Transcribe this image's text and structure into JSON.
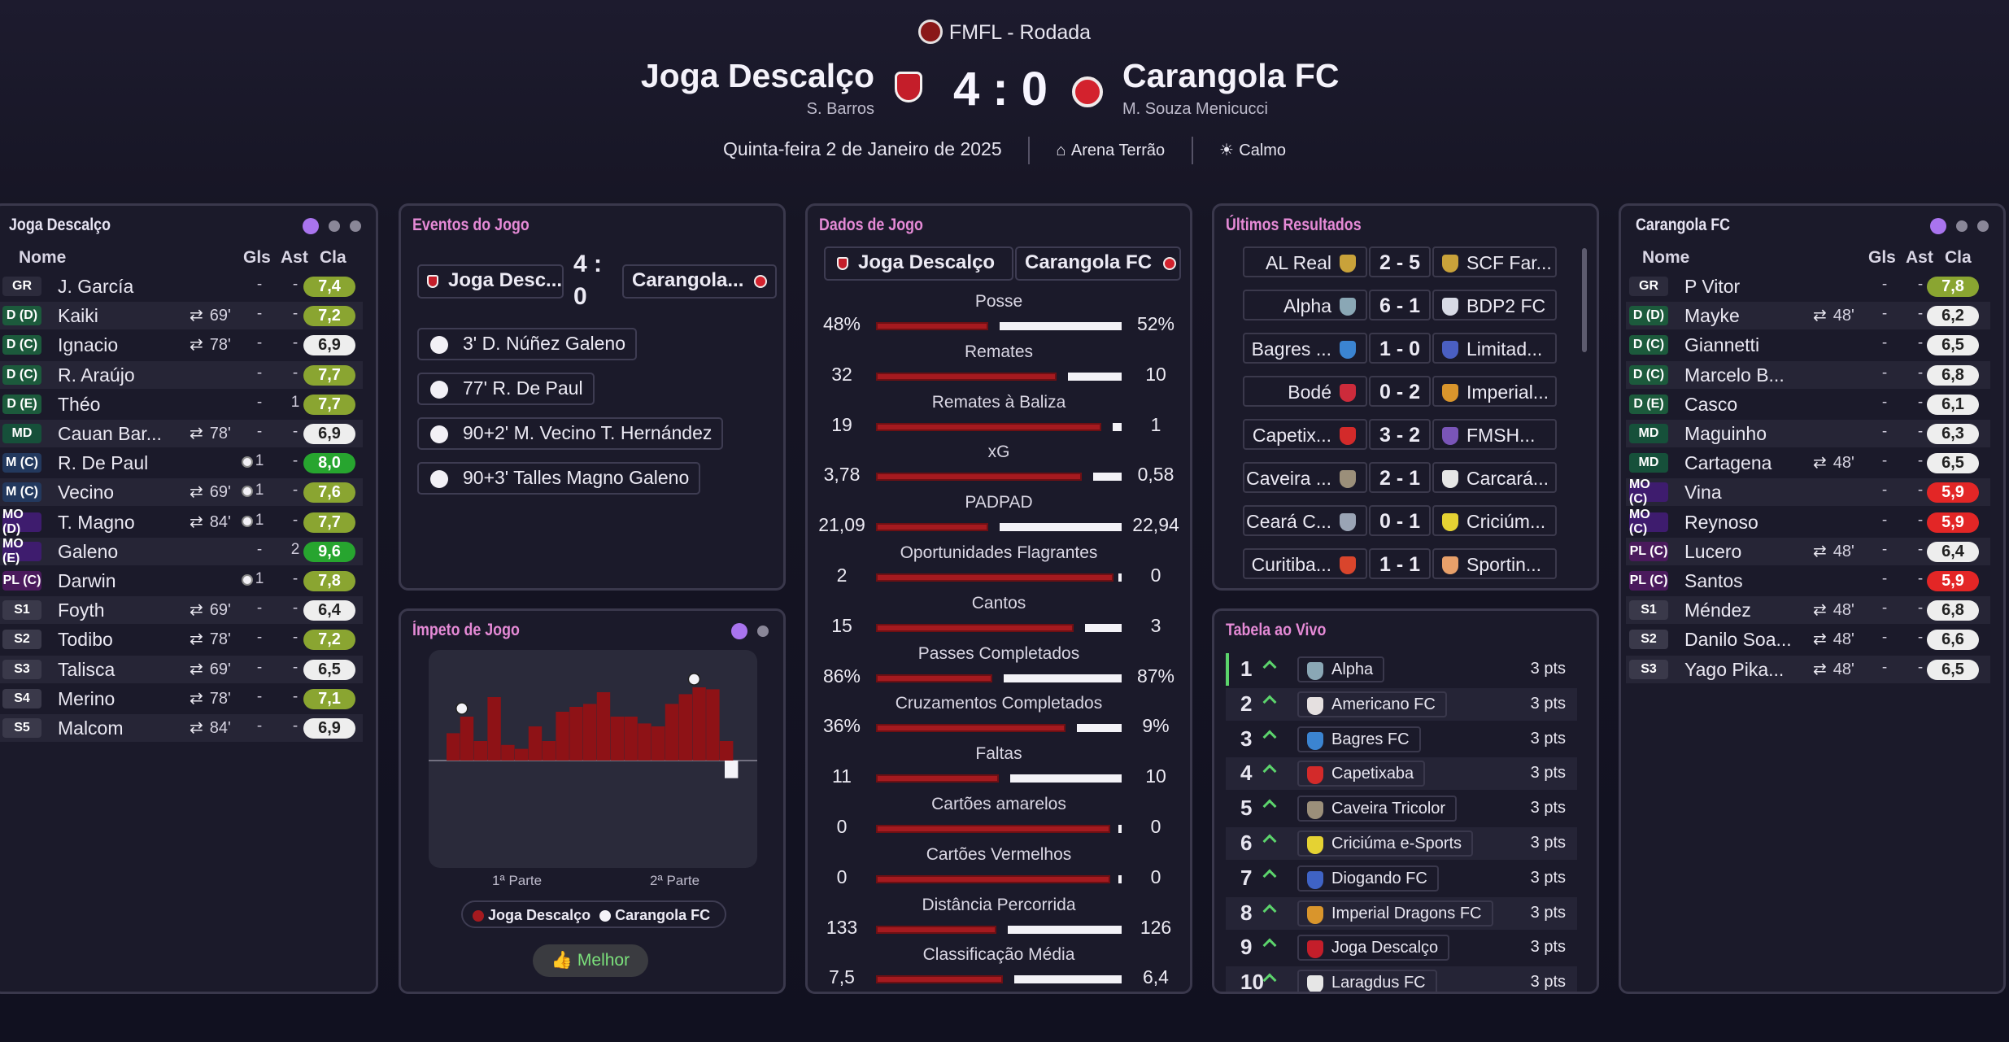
{
  "header": {
    "competition": "FMFL - Rodada",
    "home_team": "Joga Descalço",
    "home_coach": "S. Barros",
    "away_team": "Carangola FC",
    "away_coach": "M. Souza Menicucci",
    "score": "4 : 0",
    "date": "Quinta-feira 2 de Janeiro de 2025",
    "venue": "Arena Terrão",
    "weather": "Calmo"
  },
  "home_panel": {
    "title": "Joga Descalço",
    "col_name": "Nome",
    "col_goals": "Gls",
    "col_assists": "Ast",
    "col_rating": "Cla",
    "players": [
      {
        "pos": "GR",
        "name": "J. García",
        "sub": "",
        "g": "-",
        "a": "-",
        "r": "7,4"
      },
      {
        "pos": "D (D)",
        "name": "Kaiki",
        "sub": "69'",
        "g": "-",
        "a": "-",
        "r": "7,2"
      },
      {
        "pos": "D (C)",
        "name": "Ignacio",
        "sub": "78'",
        "g": "-",
        "a": "-",
        "r": "6,9"
      },
      {
        "pos": "D (C)",
        "name": "R. Araújo",
        "sub": "",
        "g": "-",
        "a": "-",
        "r": "7,7"
      },
      {
        "pos": "D (E)",
        "name": "Théo",
        "sub": "",
        "g": "-",
        "a": "1",
        "r": "7,7"
      },
      {
        "pos": "MD",
        "name": "Cauan Bar...",
        "sub": "78'",
        "g": "-",
        "a": "-",
        "r": "6,9"
      },
      {
        "pos": "M (C)",
        "name": "R. De Paul",
        "sub": "",
        "g": "1",
        "a": "-",
        "r": "8,0"
      },
      {
        "pos": "M (C)",
        "name": "Vecino",
        "sub": "69'",
        "g": "1",
        "a": "-",
        "r": "7,6"
      },
      {
        "pos": "MO (D)",
        "name": "T. Magno",
        "sub": "84'",
        "g": "1",
        "a": "-",
        "r": "7,7"
      },
      {
        "pos": "MO (E)",
        "name": "Galeno",
        "sub": "",
        "g": "-",
        "a": "2",
        "r": "9,6"
      },
      {
        "pos": "PL (C)",
        "name": "Darwin",
        "sub": "",
        "g": "1",
        "a": "-",
        "r": "7,8"
      },
      {
        "pos": "S1",
        "name": "Foyth",
        "sub": "69'",
        "g": "-",
        "a": "-",
        "r": "6,4"
      },
      {
        "pos": "S2",
        "name": "Todibo",
        "sub": "78'",
        "g": "-",
        "a": "-",
        "r": "7,2"
      },
      {
        "pos": "S3",
        "name": "Talisca",
        "sub": "69'",
        "g": "-",
        "a": "-",
        "r": "6,5"
      },
      {
        "pos": "S4",
        "name": "Merino",
        "sub": "78'",
        "g": "-",
        "a": "-",
        "r": "7,1"
      },
      {
        "pos": "S5",
        "name": "Malcom",
        "sub": "84'",
        "g": "-",
        "a": "-",
        "r": "6,9"
      }
    ]
  },
  "away_panel": {
    "title": "Carangola FC",
    "col_name": "Nome",
    "col_goals": "Gls",
    "col_assists": "Ast",
    "col_rating": "Cla",
    "players": [
      {
        "pos": "GR",
        "name": "P Vitor",
        "sub": "",
        "g": "-",
        "a": "-",
        "r": "7,8"
      },
      {
        "pos": "D (D)",
        "name": "Mayke",
        "sub": "48'",
        "g": "-",
        "a": "-",
        "r": "6,2"
      },
      {
        "pos": "D (C)",
        "name": "Giannetti",
        "sub": "",
        "g": "-",
        "a": "-",
        "r": "6,5"
      },
      {
        "pos": "D (C)",
        "name": "Marcelo B...",
        "sub": "",
        "g": "-",
        "a": "-",
        "r": "6,8"
      },
      {
        "pos": "D (E)",
        "name": "Casco",
        "sub": "",
        "g": "-",
        "a": "-",
        "r": "6,1"
      },
      {
        "pos": "MD",
        "name": "Maguinho",
        "sub": "",
        "g": "-",
        "a": "-",
        "r": "6,3"
      },
      {
        "pos": "MD",
        "name": "Cartagena",
        "sub": "48'",
        "g": "-",
        "a": "-",
        "r": "6,5"
      },
      {
        "pos": "MO (C)",
        "name": "Vina",
        "sub": "",
        "g": "-",
        "a": "-",
        "r": "5,9"
      },
      {
        "pos": "MO (C)",
        "name": "Reynoso",
        "sub": "",
        "g": "-",
        "a": "-",
        "r": "5,9"
      },
      {
        "pos": "PL (C)",
        "name": "Lucero",
        "sub": "48'",
        "g": "-",
        "a": "-",
        "r": "6,4"
      },
      {
        "pos": "PL (C)",
        "name": "Santos",
        "sub": "",
        "g": "-",
        "a": "-",
        "r": "5,9"
      },
      {
        "pos": "S1",
        "name": "Méndez",
        "sub": "48'",
        "g": "-",
        "a": "-",
        "r": "6,8"
      },
      {
        "pos": "S2",
        "name": "Danilo Soa...",
        "sub": "48'",
        "g": "-",
        "a": "-",
        "r": "6,6"
      },
      {
        "pos": "S3",
        "name": "Yago Pika...",
        "sub": "48'",
        "g": "-",
        "a": "-",
        "r": "6,5"
      }
    ]
  },
  "events": {
    "title": "Eventos do Jogo",
    "home": "Joga Desc...",
    "score": "4 :\n0",
    "away": "Carangola...",
    "items": [
      "3' D. Núñez Galeno",
      "77' R. De Paul",
      "90+2' M. Vecino T. Hernández",
      "90+3' Talles Magno Galeno"
    ]
  },
  "momentum": {
    "title": "Ímpeto de Jogo",
    "first_half": "1ª Parte",
    "second_half": "2ª Parte",
    "legend_home": "Joga Descalço",
    "legend_away": "Carangola FC",
    "button": "Melhor",
    "home_values": [
      0.28,
      0.45,
      0.2,
      0.65,
      0.16,
      0.12,
      0.35,
      0.2,
      0.5,
      0.55,
      0.58,
      0.7,
      0.45,
      0.45,
      0.38,
      0.35,
      0.58,
      0.68,
      0.75,
      0.73,
      0.2
    ],
    "away_values": [
      0,
      0,
      0,
      0,
      0,
      0,
      0,
      0,
      0,
      0,
      0,
      0,
      0,
      0,
      0,
      0,
      0,
      0,
      0,
      0,
      0.18
    ],
    "goal_markers": [
      1,
      18
    ]
  },
  "stats": {
    "title": "Dados de Jogo",
    "home": "Joga Descalço",
    "away": "Carangola FC",
    "items": [
      {
        "label": "Posse",
        "home": "48%",
        "away": "52%",
        "hv": 48,
        "av": 52
      },
      {
        "label": "Remates",
        "home": "32",
        "away": "10",
        "hv": 32,
        "av": 10
      },
      {
        "label": "Remates à Baliza",
        "home": "19",
        "away": "1",
        "hv": 19,
        "av": 1
      },
      {
        "label": "xG",
        "home": "3,78",
        "away": "0,58",
        "hv": 3.78,
        "av": 0.58
      },
      {
        "label": "PADPAD",
        "home": "21,09",
        "away": "22,94",
        "hv": 21.09,
        "av": 22.94
      },
      {
        "label": "Oportunidades Flagrantes",
        "home": "2",
        "away": "0",
        "hv": 2,
        "av": 0
      },
      {
        "label": "Cantos",
        "home": "15",
        "away": "3",
        "hv": 15,
        "av": 3
      },
      {
        "label": "Passes Completados",
        "home": "86%",
        "away": "87%",
        "hv": 86,
        "av": 87
      },
      {
        "label": "Cruzamentos Completados",
        "home": "36%",
        "away": "9%",
        "hv": 36,
        "av": 9
      },
      {
        "label": "Faltas",
        "home": "11",
        "away": "10",
        "hv": 11,
        "av": 10
      },
      {
        "label": "Cartões amarelos",
        "home": "0",
        "away": "0",
        "hv": 0,
        "av": 0
      },
      {
        "label": "Cartões Vermelhos",
        "home": "0",
        "away": "0",
        "hv": 0,
        "av": 0
      },
      {
        "label": "Distância Percorrida",
        "home": "133",
        "away": "126",
        "hv": 133,
        "av": 126
      },
      {
        "label": "Classificação Média",
        "home": "7,5",
        "away": "6,4",
        "hv": 7.5,
        "av": 6.4
      }
    ]
  },
  "results": {
    "title": "Últimos Resultados",
    "items": [
      {
        "home": "AL Real",
        "score": "2 - 5",
        "away": "SCF Far...",
        "hc": "#c9a23a",
        "ac": "#c9a23a"
      },
      {
        "home": "Alpha",
        "score": "6 - 1",
        "away": "BDP2 FC",
        "hc": "#8aa7b5",
        "ac": "#d8dbe6"
      },
      {
        "home": "Bagres ...",
        "score": "1 - 0",
        "away": "Limitad...",
        "hc": "#3b84d1",
        "ac": "#4a5fc2"
      },
      {
        "home": "Bodé",
        "score": "0 - 2",
        "away": "Imperial...",
        "hc": "#cc2b3b",
        "ac": "#d9952c"
      },
      {
        "home": "Capetix...",
        "score": "3 - 2",
        "away": "FMSH...",
        "hc": "#d32a2a",
        "ac": "#7a55b8"
      },
      {
        "home": "Caveira ...",
        "score": "2 - 1",
        "away": "Carcará...",
        "hc": "#9b8f7a",
        "ac": "#e6e6e6"
      },
      {
        "home": "Ceará C...",
        "score": "0 - 1",
        "away": "Criciúm...",
        "hc": "#9aa4b5",
        "ac": "#e5d233"
      },
      {
        "home": "Curitiba...",
        "score": "1 - 1",
        "away": "Sportin...",
        "hc": "#d9452c",
        "ac": "#e8a06a"
      }
    ]
  },
  "table": {
    "title": "Tabela ao Vivo",
    "rows": [
      {
        "n": "1",
        "team": "Alpha",
        "pts": "3 pts",
        "c": "#8aa7b5"
      },
      {
        "n": "2",
        "team": "Americano FC",
        "pts": "3 pts",
        "c": "#e5e0e0"
      },
      {
        "n": "3",
        "team": "Bagres FC",
        "pts": "3 pts",
        "c": "#3b84d1"
      },
      {
        "n": "4",
        "team": "Capetixaba",
        "pts": "3 pts",
        "c": "#d32a2a"
      },
      {
        "n": "5",
        "team": "Caveira Tricolor",
        "pts": "3 pts",
        "c": "#9b8f7a"
      },
      {
        "n": "6",
        "team": "Criciúma e-Sports",
        "pts": "3 pts",
        "c": "#e5d233"
      },
      {
        "n": "7",
        "team": "Diogando FC",
        "pts": "3 pts",
        "c": "#3f63c5"
      },
      {
        "n": "8",
        "team": "Imperial Dragons FC",
        "pts": "3 pts",
        "c": "#d9952c"
      },
      {
        "n": "9",
        "team": "Joga Descalço",
        "pts": "3 pts",
        "c": "#c41e2a"
      },
      {
        "n": "10",
        "team": "Laragdus FC",
        "pts": "3 pts",
        "c": "#e6e6e6"
      }
    ]
  }
}
